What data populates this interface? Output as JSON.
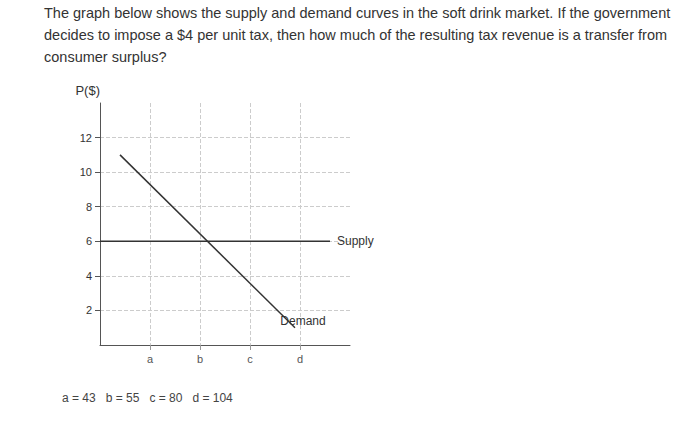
{
  "question": "The graph below shows the supply and demand curves in the soft drink market. If the government decides to impose a $4 per unit tax, then how much of the resulting tax revenue is a transfer from consumer surplus?",
  "chart_data": {
    "type": "line",
    "y_label": "P($)",
    "xlim": [
      0,
      5
    ],
    "xticks": [
      {
        "value": 1,
        "label": "a"
      },
      {
        "value": 2,
        "label": "b"
      },
      {
        "value": 3,
        "label": "c"
      },
      {
        "value": 4,
        "label": "d"
      }
    ],
    "ylim": [
      0,
      14
    ],
    "yticks": [
      2,
      4,
      6,
      8,
      10,
      12
    ],
    "grid": true,
    "line_style": "solid",
    "series": [
      {
        "name": "Supply",
        "color": "#333333",
        "x": [
          0,
          4.6
        ],
        "values": [
          6,
          6
        ]
      },
      {
        "name": "Demand",
        "color": "#333333",
        "x": [
          0.4,
          3.9
        ],
        "values": [
          11,
          1
        ]
      }
    ],
    "note": "a = 43   b = 55   c = 80   d = 104"
  }
}
